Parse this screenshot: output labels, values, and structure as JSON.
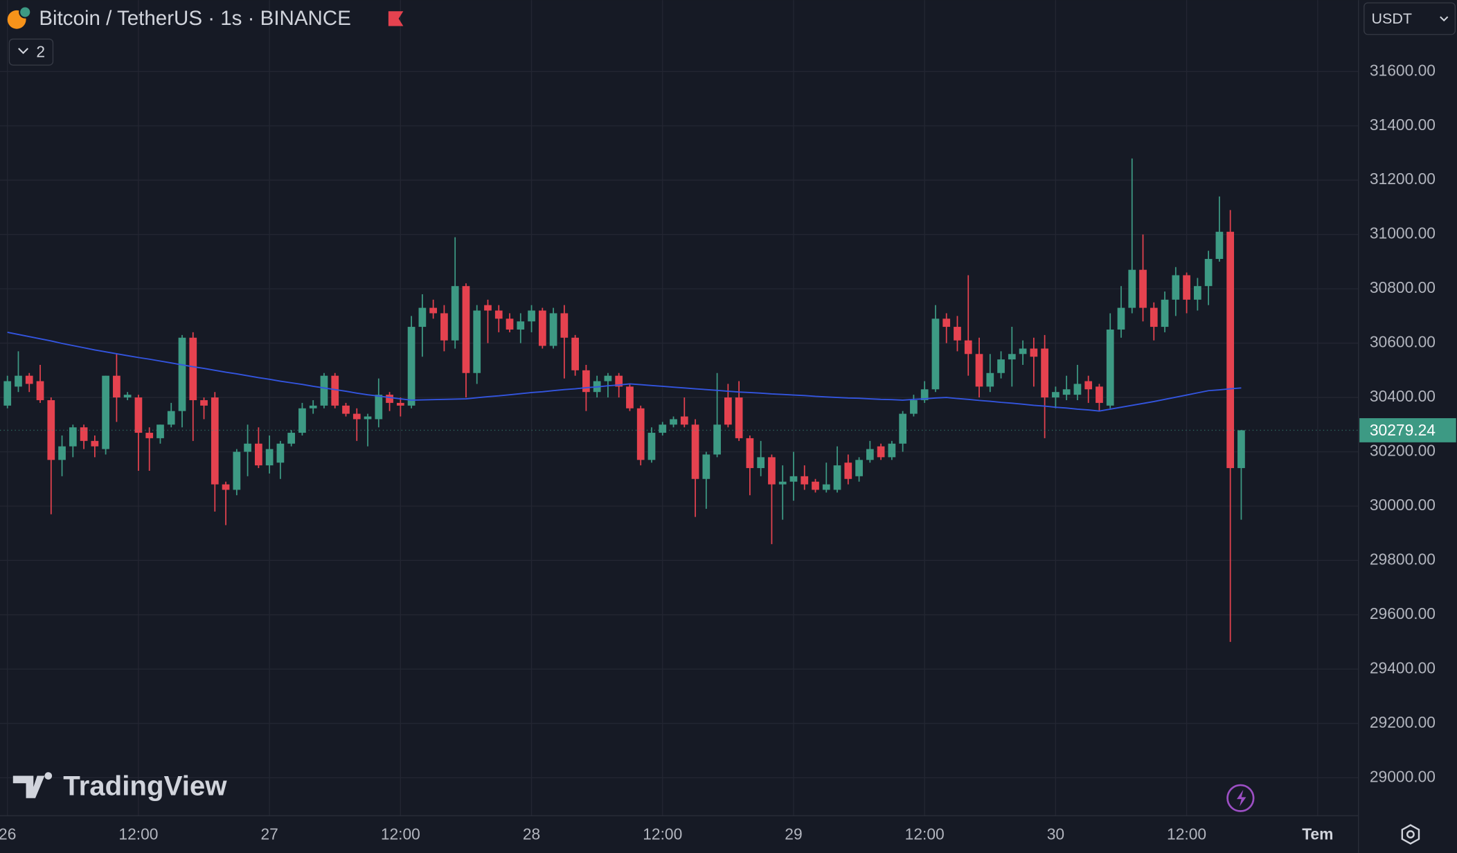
{
  "chart_data": {
    "type": "candlestick",
    "title": "Bitcoin / TetherUS · 1s · BINANCE",
    "indicators_count": "2",
    "currency": "USDT",
    "watermark": "TradingView",
    "up_color": "#3d9a84",
    "down_color": "#e5424f",
    "grid": true,
    "x": [
      0,
      1,
      2,
      3,
      4,
      5,
      6,
      7,
      8,
      9,
      10,
      11,
      12,
      13,
      14,
      15,
      16,
      17,
      18,
      19,
      20,
      21,
      22,
      23,
      24,
      25,
      26,
      27,
      28,
      29,
      30,
      31,
      32,
      33,
      34,
      35,
      36,
      37,
      38,
      39,
      40,
      41,
      42,
      43,
      44,
      45,
      46,
      47,
      48,
      49,
      50,
      51,
      52,
      53,
      54,
      55,
      56,
      57,
      58,
      59,
      60,
      61,
      62,
      63,
      64,
      65,
      66,
      67,
      68,
      69,
      70,
      71,
      72,
      73,
      74,
      75,
      76,
      77,
      78,
      79,
      80,
      81,
      82,
      83,
      84,
      85,
      86,
      87,
      88,
      89,
      90,
      91,
      92,
      93,
      94,
      95,
      96,
      97,
      98,
      99,
      100,
      101,
      102,
      103,
      104,
      105,
      106,
      107,
      108,
      109,
      110,
      111,
      112,
      113
    ],
    "xlim": [
      -0.68,
      123.74
    ],
    "xticks": [
      {
        "value": 0,
        "label": "26"
      },
      {
        "value": 12,
        "label": "12:00"
      },
      {
        "value": 24,
        "label": "27"
      },
      {
        "value": 36,
        "label": "12:00"
      },
      {
        "value": 48,
        "label": "28"
      },
      {
        "value": 60,
        "label": "12:00"
      },
      {
        "value": 72,
        "label": "29"
      },
      {
        "value": 84,
        "label": "12:00"
      },
      {
        "value": 96,
        "label": "30"
      },
      {
        "value": 108,
        "label": "12:00"
      },
      {
        "value": 120,
        "label": "Tem"
      }
    ],
    "ylim": [
      28860,
      31863
    ],
    "yticks": [
      {
        "value": 29000,
        "label": "29000.00"
      },
      {
        "value": 29200,
        "label": "29200.00"
      },
      {
        "value": 29400,
        "label": "29400.00"
      },
      {
        "value": 29600,
        "label": "29600.00"
      },
      {
        "value": 29800,
        "label": "29800.00"
      },
      {
        "value": 30000,
        "label": "30000.00"
      },
      {
        "value": 30200,
        "label": "30200.00"
      },
      {
        "value": 30400,
        "label": "30400.00"
      },
      {
        "value": 30600,
        "label": "30600.00"
      },
      {
        "value": 30800,
        "label": "30800.00"
      },
      {
        "value": 31000,
        "label": "31000.00"
      },
      {
        "value": 31200,
        "label": "31200.00"
      },
      {
        "value": 31400,
        "label": "31400.00"
      },
      {
        "value": 31600,
        "label": "31600.00"
      }
    ],
    "candles": {
      "open": [
        30370,
        30440,
        30480,
        30460,
        30390,
        30170,
        30220,
        30290,
        30240,
        30210,
        30480,
        30400,
        30400,
        30270,
        30250,
        30300,
        30350,
        30620,
        30390,
        30400,
        30080,
        30060,
        30200,
        30230,
        30150,
        30160,
        30230,
        30270,
        30360,
        30370,
        30480,
        30370,
        30340,
        30320,
        30320,
        30410,
        30380,
        30370,
        30660,
        30730,
        30710,
        30610,
        30810,
        30490,
        30740,
        30720,
        30690,
        30650,
        30680,
        30720,
        30590,
        30710,
        30620,
        30500,
        30420,
        30460,
        30480,
        30440,
        30360,
        30170,
        30270,
        30300,
        30330,
        30300,
        30100,
        30190,
        30400,
        30400,
        30250,
        30140,
        30180,
        30080,
        30090,
        30110,
        30090,
        30060,
        30060,
        30160,
        30110,
        30170,
        30220,
        30180,
        30230,
        30340,
        30390,
        30430,
        30690,
        30660,
        30610,
        30560,
        30440,
        30490,
        30540,
        30560,
        30580,
        30580,
        30400,
        30410,
        30410,
        30460,
        30440,
        30370,
        30650,
        30730,
        30870,
        30730,
        30660,
        30760,
        30850,
        30760,
        30810,
        30910,
        31010,
        30140
      ],
      "high": [
        30480,
        30570,
        30490,
        30520,
        30400,
        30260,
        30300,
        30300,
        30260,
        30480,
        30560,
        30420,
        30410,
        30290,
        30300,
        30380,
        30630,
        30640,
        30400,
        30420,
        30090,
        30210,
        30300,
        30290,
        30260,
        30240,
        30280,
        30380,
        30390,
        30490,
        30490,
        30380,
        30360,
        30340,
        30470,
        30420,
        30400,
        30700,
        30780,
        30760,
        30740,
        30990,
        30820,
        30740,
        30760,
        30740,
        30710,
        30710,
        30740,
        30730,
        30730,
        30740,
        30630,
        30520,
        30480,
        30490,
        30490,
        30450,
        30370,
        30290,
        30310,
        30330,
        30400,
        30320,
        30200,
        30490,
        30450,
        30460,
        30260,
        30240,
        30190,
        30150,
        30200,
        30150,
        30100,
        30160,
        30220,
        30190,
        30180,
        30240,
        30230,
        30240,
        30350,
        30410,
        30460,
        30740,
        30710,
        30700,
        30850,
        30620,
        30560,
        30570,
        30660,
        30610,
        30620,
        30630,
        30440,
        30480,
        30520,
        30480,
        30450,
        30710,
        30810,
        31280,
        31000,
        30750,
        30790,
        30880,
        30860,
        30840,
        30940,
        31140,
        31090,
        30280
      ],
      "low": [
        30360,
        30420,
        30420,
        30380,
        29970,
        30110,
        30180,
        30210,
        30180,
        30190,
        30310,
        30390,
        30130,
        30130,
        30230,
        30290,
        30290,
        30240,
        30320,
        29980,
        29930,
        30040,
        30110,
        30140,
        30120,
        30100,
        30220,
        30260,
        30340,
        30360,
        30360,
        30330,
        30240,
        30220,
        30290,
        30350,
        30330,
        30360,
        30550,
        30690,
        30570,
        30580,
        30400,
        30450,
        30600,
        30640,
        30640,
        30600,
        30640,
        30580,
        30580,
        30470,
        30480,
        30350,
        30400,
        30400,
        30400,
        30350,
        30150,
        30160,
        30260,
        30290,
        30290,
        29960,
        29990,
        30180,
        30290,
        30240,
        30040,
        30110,
        29860,
        29950,
        30020,
        30060,
        30050,
        30050,
        30050,
        30080,
        30090,
        30160,
        30170,
        30170,
        30200,
        30330,
        30380,
        30420,
        30600,
        30570,
        30480,
        30400,
        30420,
        30470,
        30440,
        30520,
        30440,
        30250,
        30360,
        30390,
        30390,
        30380,
        30350,
        30360,
        30620,
        30710,
        30680,
        30610,
        30640,
        30700,
        30710,
        30720,
        30740,
        30900,
        29500,
        29950
      ],
      "close": [
        30460,
        30480,
        30450,
        30390,
        30170,
        30220,
        30290,
        30240,
        30220,
        30480,
        30400,
        30410,
        30270,
        30250,
        30300,
        30350,
        30620,
        30390,
        30370,
        30080,
        30060,
        30200,
        30230,
        30150,
        30210,
        30230,
        30270,
        30360,
        30370,
        30480,
        30370,
        30340,
        30320,
        30330,
        30410,
        30380,
        30370,
        30660,
        30730,
        30710,
        30610,
        30810,
        30490,
        30720,
        30720,
        30690,
        30650,
        30680,
        30720,
        30590,
        30710,
        30620,
        30500,
        30420,
        30460,
        30480,
        30440,
        30360,
        30170,
        30270,
        30300,
        30320,
        30300,
        30100,
        30190,
        30300,
        30300,
        30250,
        30140,
        30180,
        30080,
        30090,
        30110,
        30080,
        30060,
        30080,
        30150,
        30100,
        30170,
        30210,
        30180,
        30230,
        30340,
        30390,
        30430,
        30690,
        30660,
        30610,
        30560,
        30440,
        30490,
        30540,
        30560,
        30580,
        30550,
        30400,
        30420,
        30430,
        30450,
        30430,
        30380,
        30650,
        30730,
        30870,
        30730,
        30660,
        30760,
        30850,
        30760,
        30810,
        30910,
        31010,
        30140,
        30279.24
      ]
    },
    "overlays": [
      {
        "color": "#3355e0",
        "values": [
          30640,
          30632,
          30624,
          30616,
          30608,
          30599,
          30591,
          30583,
          30575,
          30568,
          30561,
          30554,
          30547,
          30541,
          30534,
          30527,
          30520,
          30513,
          30507,
          30500,
          30493,
          30487,
          30480,
          30473,
          30467,
          30460,
          30454,
          30448,
          30441,
          30435,
          30429,
          30423,
          30416,
          30410,
          30405,
          30400,
          30395,
          30390,
          30391,
          30392,
          30393,
          30394,
          30395,
          30399,
          30403,
          30406,
          30410,
          30414,
          30418,
          30421,
          30425,
          30429,
          30432,
          30436,
          30439,
          30443,
          30446,
          30450,
          30447,
          30444,
          30441,
          30438,
          30435,
          30432,
          30429,
          30426,
          30423,
          30420,
          30418,
          30416,
          30413,
          30411,
          30409,
          30407,
          30404,
          30402,
          30400,
          30398,
          30397,
          30395,
          30393,
          30392,
          30390,
          30393,
          30395,
          30398,
          30400,
          30396,
          30393,
          30389,
          30386,
          30382,
          30379,
          30375,
          30371,
          30368,
          30364,
          30361,
          30357,
          30354,
          30350,
          30357,
          30364,
          30371,
          30378,
          30385,
          30393,
          30401,
          30409,
          30417,
          30425,
          30428,
          30432,
          30435
        ]
      }
    ]
  }
}
